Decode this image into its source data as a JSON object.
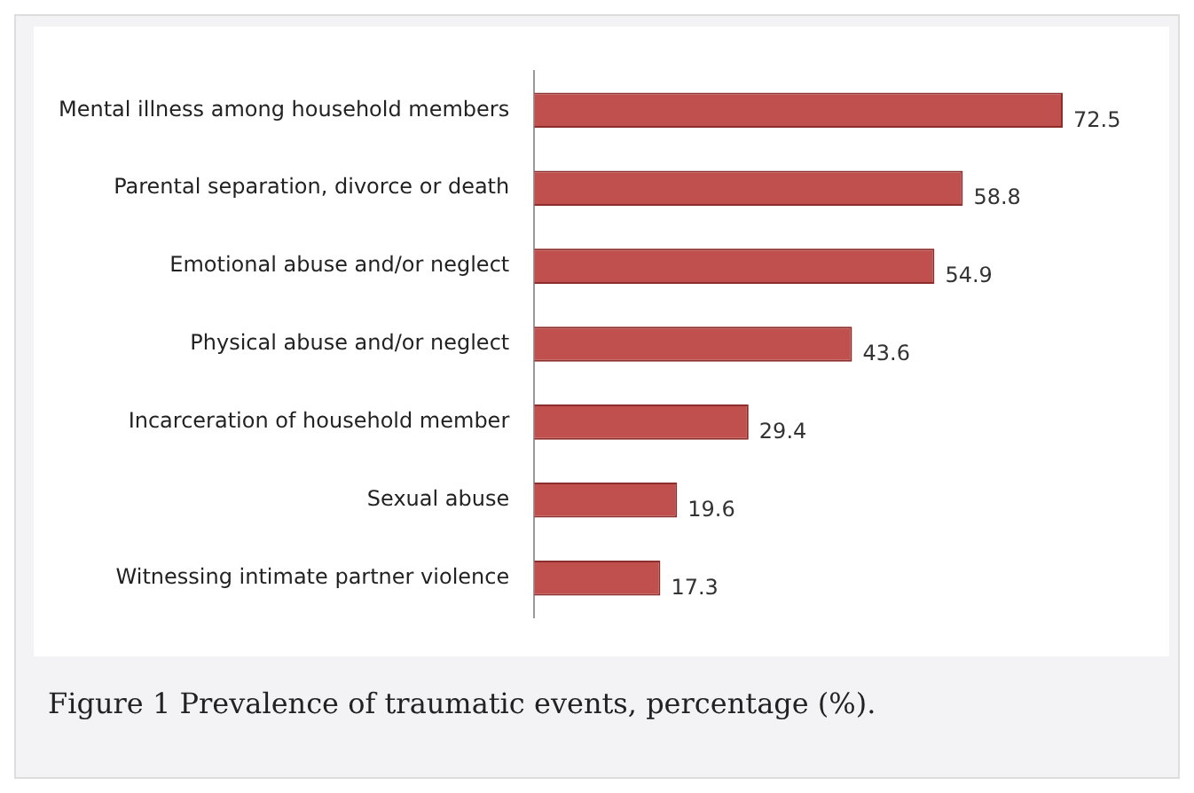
{
  "chart_data": {
    "type": "bar",
    "orientation": "horizontal",
    "categories": [
      "Mental illness among household members",
      "Parental separation, divorce or death",
      "Emotional abuse and/or neglect",
      "Physical abuse and/or neglect",
      "Incarceration of household member",
      "Sexual abuse",
      "Witnessing intimate partner violence"
    ],
    "values": [
      72.5,
      58.8,
      54.9,
      43.6,
      29.4,
      19.6,
      17.3
    ],
    "color": "#c0504d",
    "data_labels": true,
    "legend": false,
    "annotations": [
      "Figure 1 Prevalence of traumatic events, percentage (%)."
    ]
  }
}
